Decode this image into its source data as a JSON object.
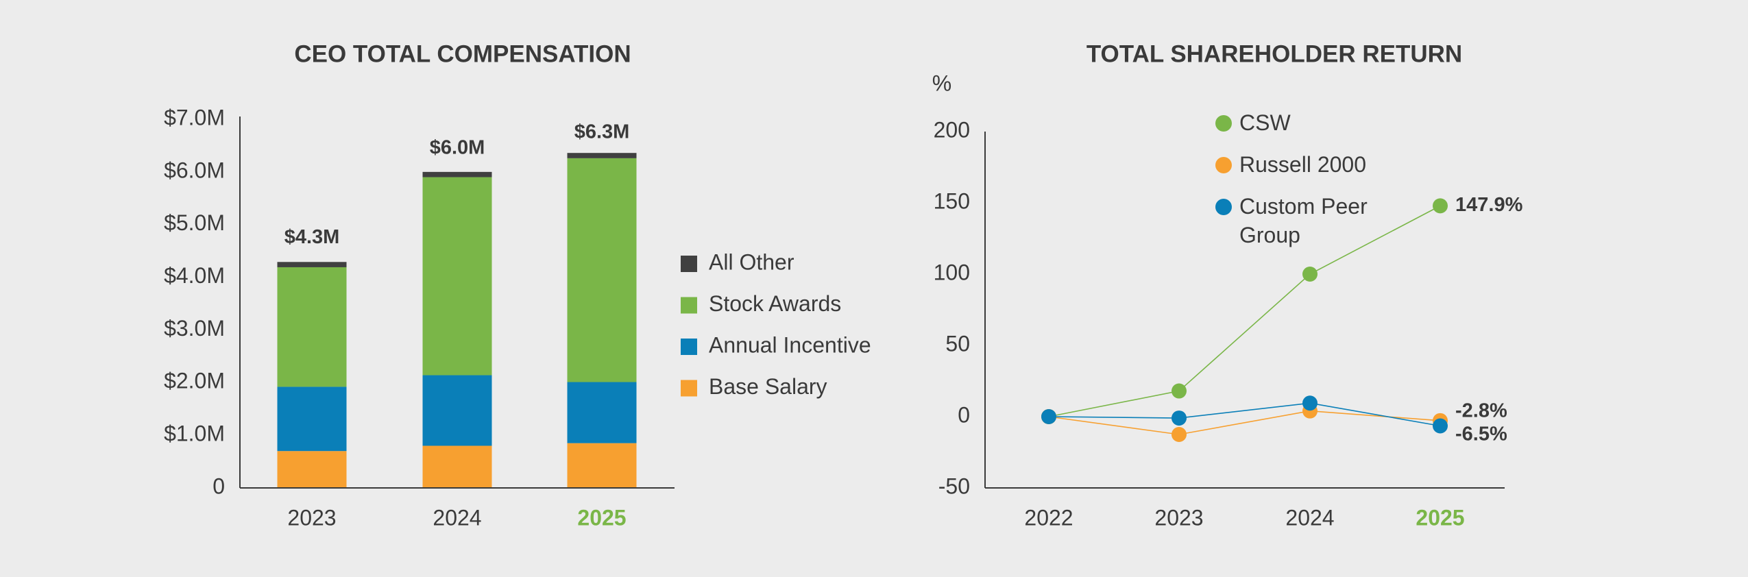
{
  "chart_data": [
    {
      "type": "stacked_bar",
      "title": "CEO TOTAL COMPENSATION",
      "categories": [
        "2023",
        "2024",
        "2025"
      ],
      "highlight": "2025",
      "highlight_color": "#7ab648",
      "series": [
        {
          "name": "Base Salary",
          "color": "#f7a030",
          "values": [
            0.7,
            0.8,
            0.85
          ]
        },
        {
          "name": "Annual Incentive",
          "color": "#0a7fb8",
          "values": [
            1.22,
            1.34,
            1.16
          ]
        },
        {
          "name": "Stock Awards",
          "color": "#7ab648",
          "values": [
            2.27,
            3.76,
            4.25
          ]
        },
        {
          "name": "All Other",
          "color": "#404040",
          "values": [
            0.1,
            0.1,
            0.1
          ]
        }
      ],
      "totals": {
        "values": [
          4.3,
          6.0,
          6.3
        ],
        "value_labels": [
          "$4.3M",
          "$6.0M",
          "$6.3M"
        ]
      },
      "ylim": [
        0,
        7
      ],
      "yticks": [
        0,
        {
          "value": 1,
          "label": "$1.0M"
        },
        {
          "value": 2,
          "label": "$2.0M"
        },
        {
          "value": 3,
          "label": "$3.0M"
        },
        {
          "value": 4,
          "label": "$4.0M"
        },
        {
          "value": 5,
          "label": "$5.0M"
        },
        {
          "value": 6,
          "label": "$6.0M"
        },
        {
          "value": 7,
          "label": "$7.0M"
        }
      ],
      "grid": false,
      "legend": "right"
    },
    {
      "type": "line",
      "title": "TOTAL SHAREHOLDER RETURN",
      "y_label": "%",
      "categories": [
        "2022",
        "2023",
        "2024",
        "2025"
      ],
      "highlight": "2025",
      "highlight_color": "#7ab648",
      "series": [
        {
          "name": "CSW",
          "color": "#7ab648",
          "values": [
            0,
            18,
            100,
            147.9
          ],
          "value_labels": [
            null,
            null,
            null,
            "147.9%"
          ]
        },
        {
          "name": "Russell 2000",
          "color": "#f7a030",
          "values": [
            0,
            -12.5,
            4,
            -2.8
          ],
          "value_labels": [
            null,
            null,
            null,
            "-2.8%"
          ]
        },
        {
          "name": "Custom Peer Group",
          "color": "#0a7fb8",
          "values": [
            0,
            -1,
            9.5,
            -6.5
          ],
          "value_labels": [
            null,
            null,
            null,
            "-6.5%"
          ]
        }
      ],
      "ylim": [
        -50,
        200
      ],
      "yticks": [
        -50,
        0,
        50,
        100,
        150,
        200
      ],
      "grid": false,
      "legend": "top"
    }
  ]
}
